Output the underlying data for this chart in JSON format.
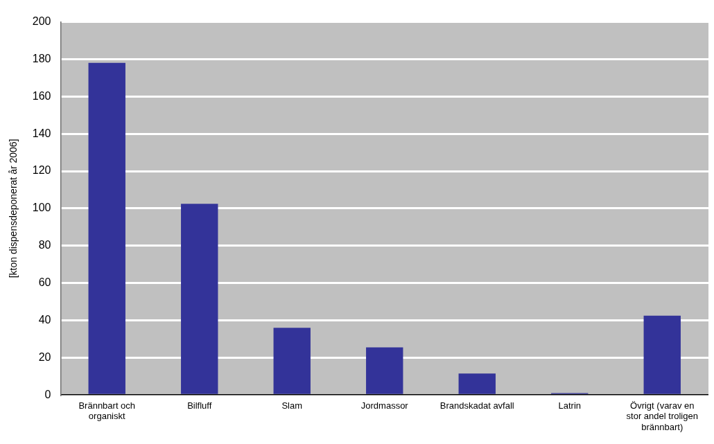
{
  "chart_data": {
    "type": "bar",
    "ylabel": "[kton dispensdeponerat år 2006]",
    "categories": [
      "Brännbart och organiskt",
      "Bilfluff",
      "Slam",
      "Jordmassor",
      "Brandskadat avfall",
      "Latrin",
      "Övrigt (varav en stor andel troligen brännbart)"
    ],
    "values": [
      178,
      102.5,
      36,
      25.5,
      11.5,
      1,
      42.5
    ],
    "color": "#333399",
    "ylim": [
      0,
      200
    ],
    "yticks": [
      0,
      20,
      40,
      60,
      80,
      100,
      120,
      140,
      160,
      180,
      200
    ],
    "grid": "y"
  }
}
